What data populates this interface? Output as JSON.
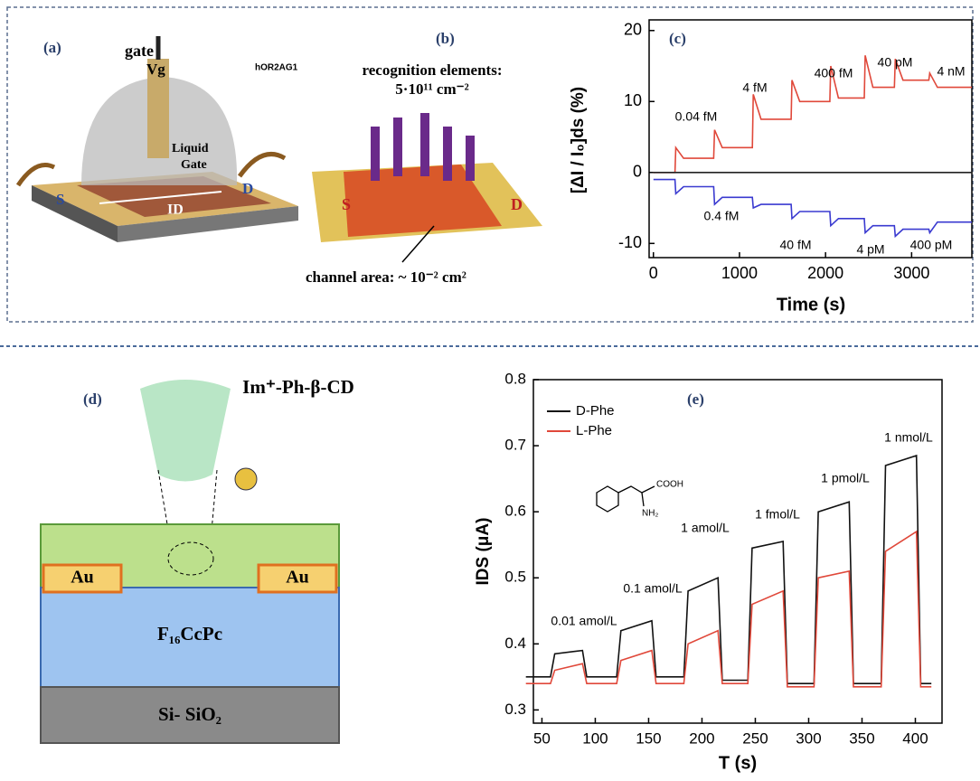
{
  "panels": {
    "a": {
      "label": "(a)",
      "gate": "gate",
      "vg": "Vg",
      "liquid": "Liquid",
      "gate2": "Gate",
      "s": "S",
      "d": "D",
      "id": "ID",
      "protein": "hOR2AG1"
    },
    "b": {
      "label": "(b)",
      "recog": "recognition elements:",
      "density": "5·10¹¹ cm⁻²",
      "s": "S",
      "d": "D",
      "channel": "channel area:  ~ 10⁻² cm²"
    },
    "d": {
      "label": "(d)",
      "molecule": "Im⁺-Ph-β-CD",
      "au1": "Au",
      "au2": "Au",
      "semi": "F₁₆CcPc",
      "sub": "Si- SiO₂"
    },
    "e": {
      "cooh": "COOH",
      "nh2": "NH₂"
    }
  },
  "chart_data": [
    {
      "type": "line",
      "panel_label": "(c)",
      "xlabel": "Time (s)",
      "ylabel": "[ΔI / I₀]ds (%)",
      "x": [
        0,
        250,
        260,
        350,
        700,
        710,
        800,
        1150,
        1160,
        1250,
        1600,
        1610,
        1700,
        2050,
        2060,
        2150,
        2450,
        2460,
        2550,
        2800,
        2810,
        2900,
        3200,
        3210,
        3300,
        3700
      ],
      "series": [
        {
          "color": "#e0483a",
          "values": [
            0,
            0,
            3.5,
            2,
            2,
            6,
            3.5,
            3.5,
            11,
            7.5,
            7.5,
            13,
            10,
            10,
            15,
            10.5,
            10.5,
            16.5,
            12,
            12,
            16,
            13,
            13,
            14,
            12,
            12
          ]
        },
        {
          "color": "#222222",
          "values": [
            0,
            0,
            0,
            0,
            0,
            0,
            0,
            0,
            0,
            0,
            0,
            0,
            0,
            0,
            0,
            0,
            0,
            0,
            0,
            0,
            0,
            0,
            0,
            0,
            0,
            0
          ]
        },
        {
          "color": "#3a3ad0",
          "values": [
            -1,
            -1,
            -3,
            -2,
            -2,
            -4.5,
            -3.5,
            -3.5,
            -5,
            -4.5,
            -4.5,
            -6.5,
            -5.5,
            -5.5,
            -7.5,
            -6.5,
            -6.5,
            -8.5,
            -7.5,
            -7.5,
            -9,
            -8,
            -8,
            -8.5,
            -7,
            -7
          ]
        }
      ],
      "annotations": [
        "0.04 fM",
        "4 fM",
        "400 fM",
        "40 pM",
        "4 nM",
        "0.4 fM",
        "40 fM",
        "4 pM",
        "400 pM"
      ],
      "xlim": [
        -50,
        3700
      ],
      "xticks": [
        0,
        1000,
        2000,
        3000
      ],
      "ylim": [
        -12,
        21.5
      ],
      "yticks": [
        -10,
        0,
        10,
        20
      ]
    },
    {
      "type": "line",
      "panel_label": "(e)",
      "xlabel": "T (s)",
      "ylabel": "IDS (μA)",
      "x": [
        35,
        58,
        62,
        88,
        92,
        120,
        124,
        153,
        157,
        183,
        187,
        215,
        219,
        243,
        247,
        276,
        280,
        305,
        309,
        338,
        342,
        368,
        372,
        401,
        405,
        415
      ],
      "series": [
        {
          "name": "D-Phe",
          "color": "#111111",
          "values": [
            0.35,
            0.35,
            0.385,
            0.39,
            0.35,
            0.35,
            0.42,
            0.435,
            0.35,
            0.35,
            0.48,
            0.5,
            0.345,
            0.345,
            0.545,
            0.555,
            0.34,
            0.34,
            0.6,
            0.615,
            0.34,
            0.34,
            0.67,
            0.685,
            0.34,
            0.34
          ]
        },
        {
          "name": "L-Phe",
          "color": "#e0483a",
          "values": [
            0.34,
            0.34,
            0.36,
            0.37,
            0.34,
            0.34,
            0.375,
            0.39,
            0.34,
            0.34,
            0.4,
            0.42,
            0.34,
            0.34,
            0.46,
            0.48,
            0.335,
            0.335,
            0.5,
            0.51,
            0.335,
            0.335,
            0.54,
            0.57,
            0.335,
            0.335
          ]
        }
      ],
      "annotations": [
        "0.01 amol/L",
        "0.1 amol/L",
        "1 amol/L",
        "1 fmol/L",
        "1 pmol/L",
        "1 nmol/L"
      ],
      "xlim": [
        42,
        425
      ],
      "xticks": [
        50,
        100,
        150,
        200,
        250,
        300,
        350,
        400
      ],
      "ylim": [
        0.28,
        0.8
      ],
      "yticks": [
        0.3,
        0.4,
        0.5,
        0.6,
        0.7,
        0.8
      ]
    }
  ]
}
